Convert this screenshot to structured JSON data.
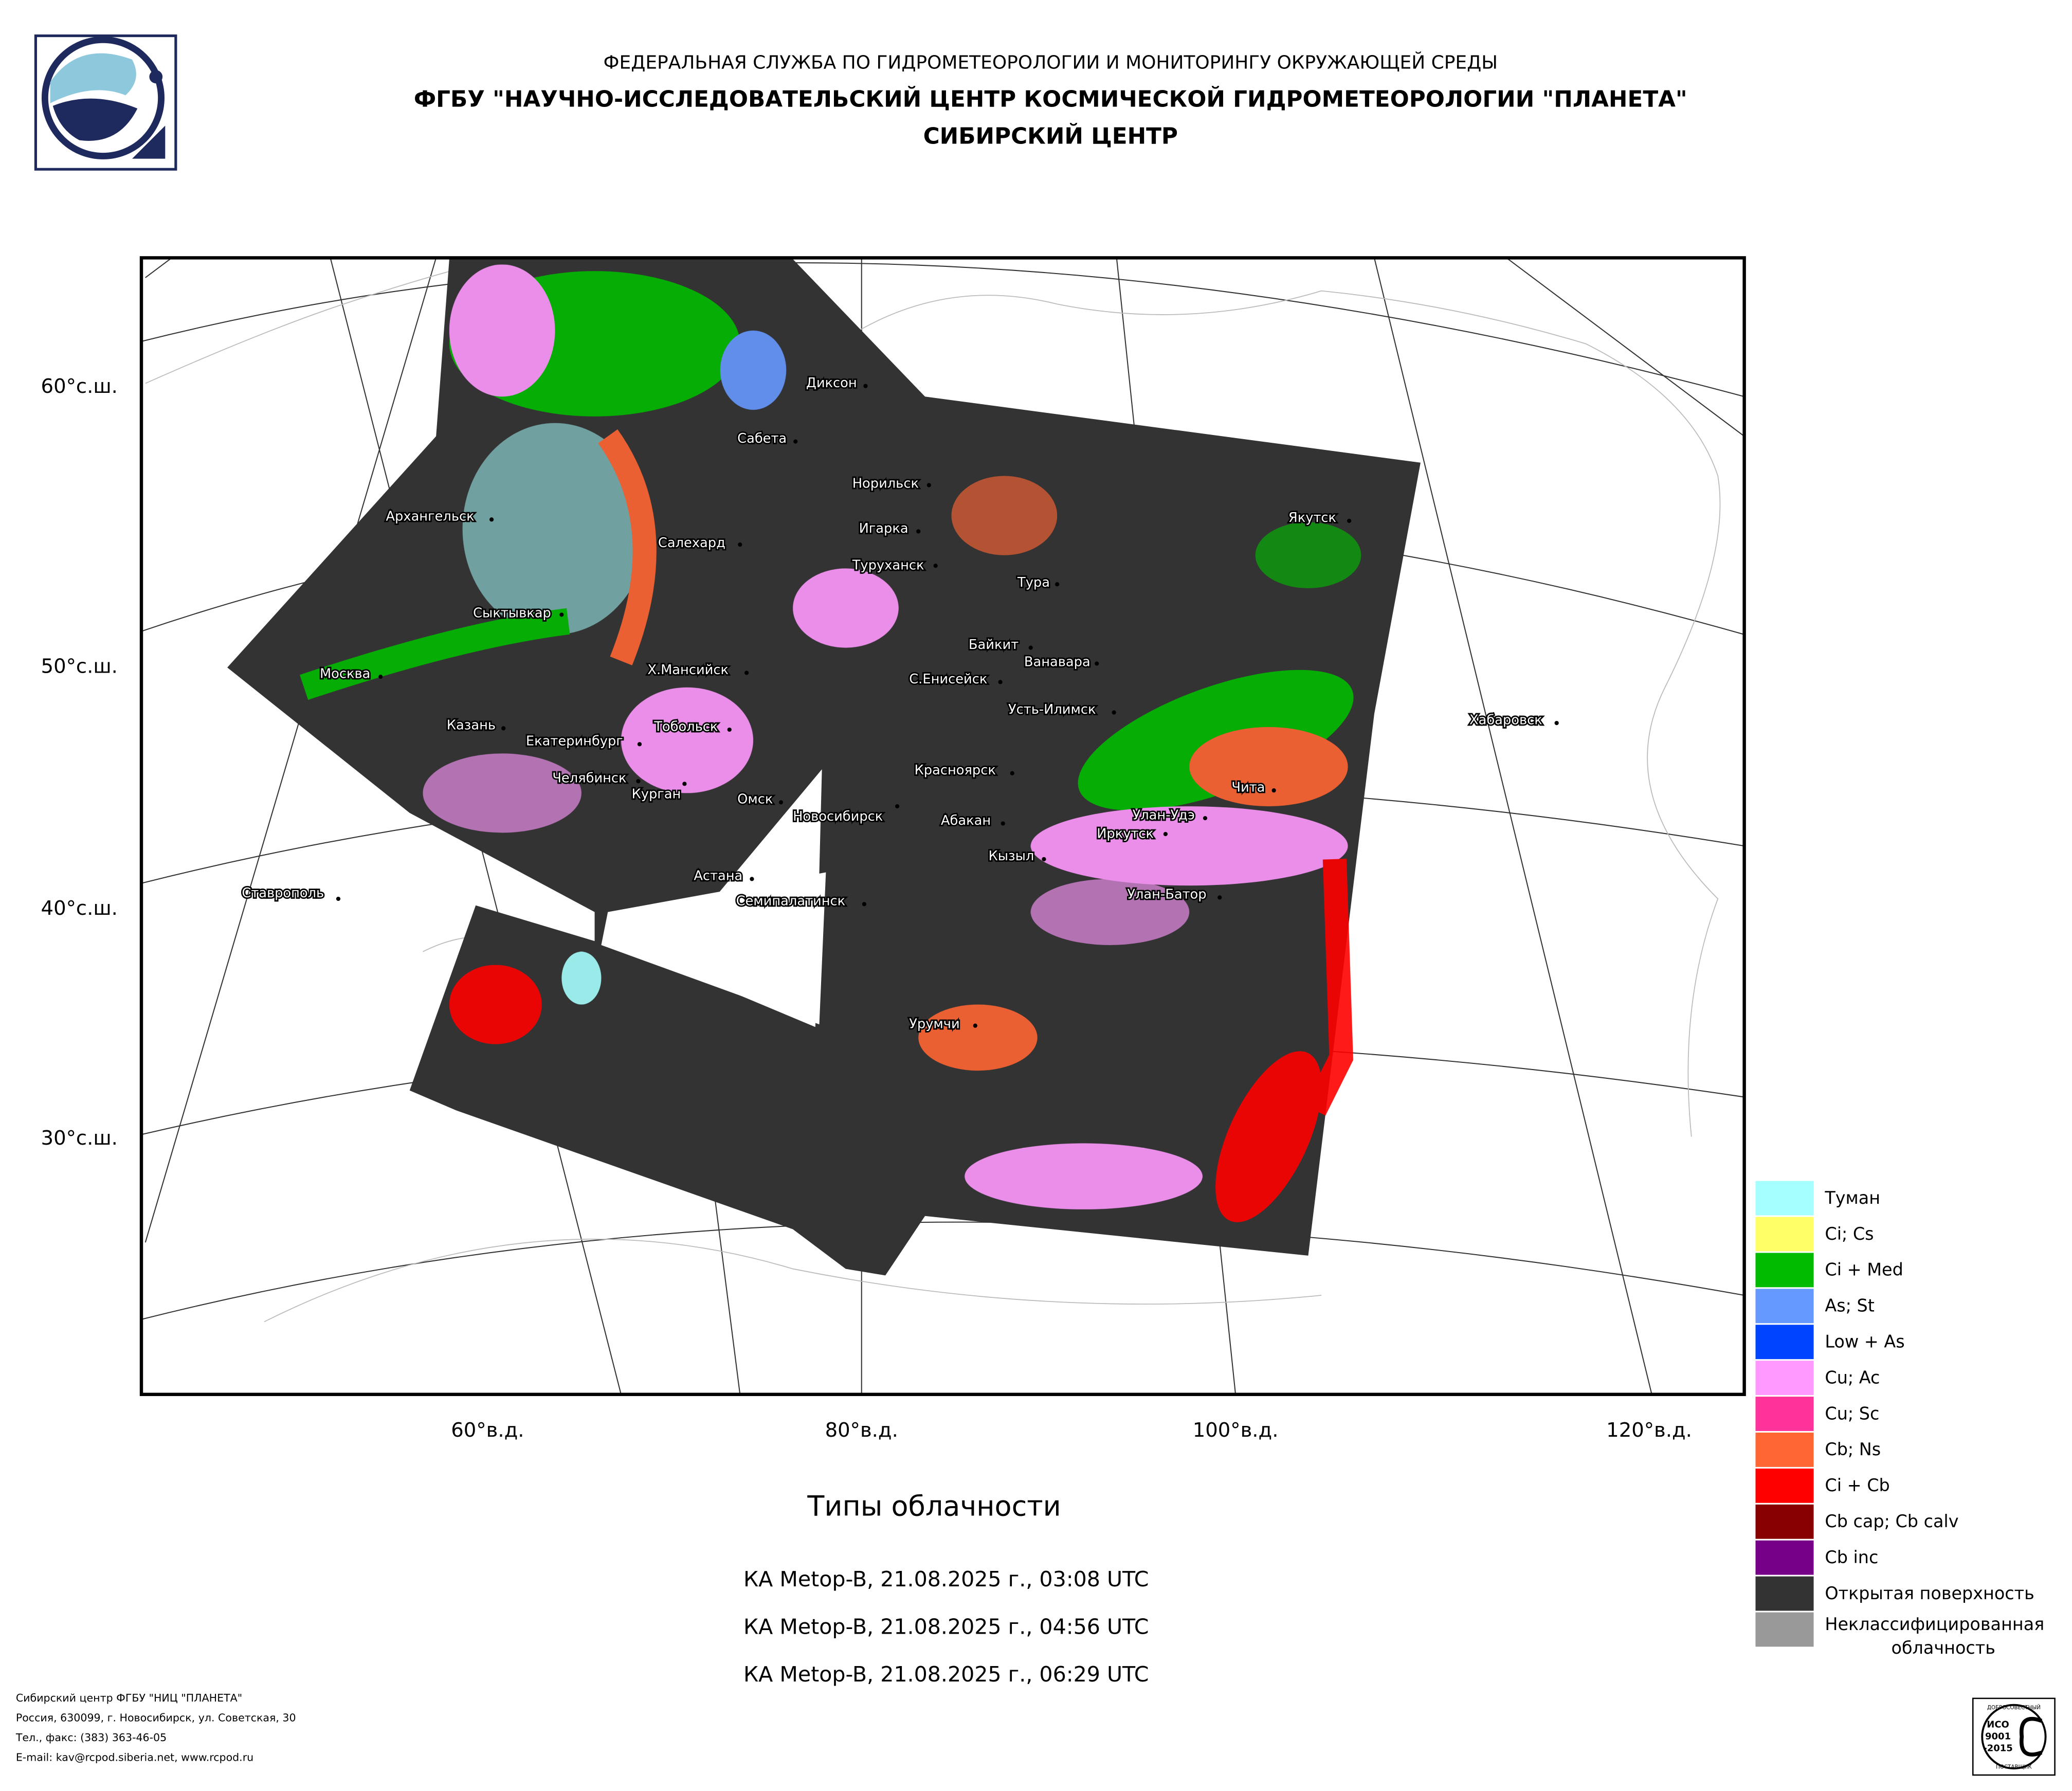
{
  "header": {
    "line1": "ФЕДЕРАЛЬНАЯ СЛУЖБА ПО ГИДРОМЕТЕОРОЛОГИИ И МОНИТОРИНГУ ОКРУЖАЮЩЕЙ СРЕДЫ",
    "line2": "ФГБУ \"НАУЧНО-ИССЛЕДОВАТЕЛЬСКИЙ ЦЕНТР КОСМИЧЕСКОЙ ГИДРОМЕТЕОРОЛОГИИ \"ПЛАНЕТА\"",
    "line3": "СИБИРСКИЙ ЦЕНТР"
  },
  "map": {
    "lat_labels": [
      "60°с.ш.",
      "50°с.ш.",
      "40°с.ш.",
      "30°с.ш."
    ],
    "lon_labels": [
      "60°в.д.",
      "80°в.д.",
      "100°в.д.",
      "120°в.д."
    ],
    "cities": [
      "Диксон",
      "Сабета",
      "Норильск",
      "Архангельск",
      "Салехард",
      "Игарка",
      "Туруханск",
      "Тура",
      "Якутск",
      "Сыктывкар",
      "Байкит",
      "Ванавара",
      "Москва",
      "Х.Мансийск",
      "С.Енисейск",
      "Усть-Илимск",
      "Хабаровск",
      "Казань",
      "Тобольск",
      "Екатеринбург",
      "Красноярск",
      "Челябинск",
      "Чита",
      "Курган",
      "Омск",
      "Новосибирск",
      "Абакан",
      "Улан-Удэ",
      "Иркутск",
      "Кызыл",
      "Ставрополь",
      "Улан-Батор",
      "Астана",
      "Семипалатинск",
      "Урумчи"
    ]
  },
  "legend": [
    {
      "label": "Туман",
      "color": "#a6ffff"
    },
    {
      "label": "Ci; Cs",
      "color": "#ffff66"
    },
    {
      "label": "Ci + Med",
      "color": "#00bb00"
    },
    {
      "label": "As; St",
      "color": "#6699ff"
    },
    {
      "label": "Low + As",
      "color": "#0044ff"
    },
    {
      "label": "Cu; Ac",
      "color": "#ff99ff"
    },
    {
      "label": "Cu; Sc",
      "color": "#ff3399"
    },
    {
      "label": "Cb; Ns",
      "color": "#ff6633"
    },
    {
      "label": "Ci + Cb",
      "color": "#ff0000"
    },
    {
      "label": "Cb cap; Cb calv",
      "color": "#880000"
    },
    {
      "label": "Cb inc",
      "color": "#770088"
    },
    {
      "label": "Открытая поверхность",
      "color": "#333333"
    },
    {
      "label": "Неклассифицированная облачность",
      "color": "#999999"
    }
  ],
  "title": "Типы облачности",
  "passes": [
    "КА Metop-B, 21.08.2025 г., 03:08 UTC",
    "КА Metop-B, 21.08.2025 г., 04:56 UTC",
    "КА Metop-B, 21.08.2025 г., 06:29 UTC"
  ],
  "footer": [
    "Сибирский центр ФГБУ \"НИЦ \"ПЛАНЕТА\"",
    "Россия, 630099, г. Новосибирск, ул. Советская, 30",
    "Тел., факс: (383) 363-46-05",
    "E-mail: kav@rcpod.siberia.net, www.rcpod.ru"
  ],
  "badge": {
    "top": "ДОБРОСОВЕСТНЫЙ",
    "iso": "ИСО",
    "num": "9001",
    "year": "-2015",
    "bottom": "ПОСТАВЩИК"
  }
}
